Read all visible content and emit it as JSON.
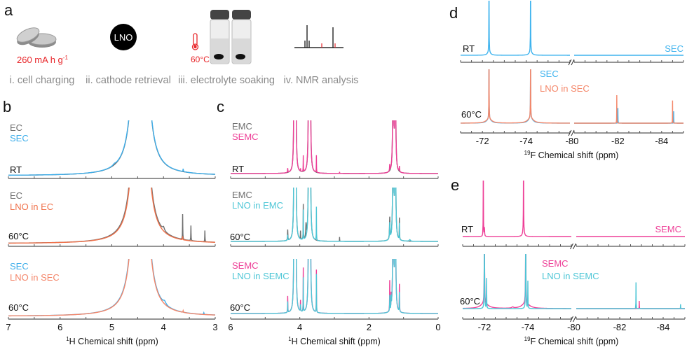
{
  "panel_letters": {
    "a": "a",
    "b": "b",
    "c": "c",
    "d": "d",
    "e": "e"
  },
  "workflow": {
    "capacity": "260 mA h g",
    "capacity_sup": "-1",
    "lno_badge": "LNO",
    "temperature": "60°C",
    "steps": [
      "i. cell charging",
      "ii. cathode retrieval",
      "iii. electrolyte soaking",
      "iv. NMR analysis"
    ],
    "colors": {
      "accent": "#e8262a",
      "text": "#8a8a8a"
    }
  },
  "chart_data": [
    {
      "id": "b",
      "type": "line",
      "xlabel_sup": "1",
      "xlabel": "H Chemical shift (ppm)",
      "xlim": [
        7,
        3
      ],
      "xticks": [
        "7",
        "6",
        "5",
        "4",
        "3"
      ],
      "xtick_values": [
        7,
        6,
        5,
        4,
        3
      ],
      "subplots": [
        {
          "condition": "RT",
          "series": [
            {
              "name": "EC",
              "color": "#6e6e6e",
              "peaks": [
                [
                  4.45,
                  12500,
                  0.02
                ],
                [
                  4.25,
                  8,
                  0.01
                ]
              ]
            },
            {
              "name": "SEC",
              "color": "#3eaeea",
              "peaks": [
                [
                  4.45,
                  12800,
                  0.02
                ],
                [
                  4.95,
                  2,
                  0.03
                ],
                [
                  3.62,
                  5,
                  0.004
                ]
              ]
            }
          ]
        },
        {
          "condition": "60°C",
          "series": [
            {
              "name": "EC",
              "color": "#6e6e6e",
              "peaks": [
                [
                  4.45,
                  12500,
                  0.02
                ],
                [
                  4.0,
                  6,
                  0.02
                ],
                [
                  3.63,
                  45,
                  0.003
                ],
                [
                  3.47,
                  27,
                  0.003
                ],
                [
                  3.2,
                  20,
                  0.003
                ]
              ]
            },
            {
              "name": "LNO in EC",
              "color": "#f0714a",
              "peaks": [
                [
                  4.45,
                  11500,
                  0.02
                ],
                [
                  3.63,
                  6,
                  0.003
                ]
              ]
            }
          ]
        },
        {
          "condition": "60°C",
          "series": [
            {
              "name": "SEC",
              "color": "#3eaeea",
              "peaks": [
                [
                  4.45,
                  12500,
                  0.02
                ],
                [
                  3.98,
                  5,
                  0.03
                ],
                [
                  3.22,
                  3,
                  0.005
                ]
              ]
            },
            {
              "name": "LNO in SEC",
              "color": "#f4866a",
              "peaks": [
                [
                  4.45,
                  12000,
                  0.02
                ],
                [
                  3.62,
                  3,
                  0.004
                ]
              ]
            }
          ]
        }
      ]
    },
    {
      "id": "c",
      "type": "line",
      "xlabel_sup": "1",
      "xlabel": "H Chemical shift (ppm)",
      "xlim": [
        6,
        0
      ],
      "xticks": [
        "6",
        "4",
        "2",
        "0"
      ],
      "xtick_values": [
        6,
        4,
        2,
        0
      ],
      "subplots": [
        {
          "condition": "RT",
          "series": [
            {
              "name": "EMC",
              "color": "#6e6e6e",
              "peaks": [
                [
                  4.16,
                  300,
                  0.012
                ],
                [
                  4.12,
                  300,
                  0.012
                ],
                [
                  3.74,
                  300,
                  0.012
                ],
                [
                  3.7,
                  300,
                  0.012
                ],
                [
                  1.3,
                  300,
                  0.012
                ],
                [
                  1.24,
                  300,
                  0.012
                ]
              ]
            },
            {
              "name": "SEMC",
              "color": "#ee3f97",
              "peaks": [
                [
                  4.16,
                  300,
                  0.012
                ],
                [
                  4.12,
                  300,
                  0.012
                ],
                [
                  3.74,
                  300,
                  0.012
                ],
                [
                  3.7,
                  300,
                  0.012
                ],
                [
                  1.3,
                  300,
                  0.012
                ],
                [
                  1.24,
                  300,
                  0.012
                ],
                [
                  4.35,
                  8,
                  0.006
                ],
                [
                  3.9,
                  30,
                  0.003
                ],
                [
                  3.52,
                  32,
                  0.003
                ],
                [
                  3.98,
                  5,
                  0.004
                ],
                [
                  2.85,
                  3,
                  0.003
                ],
                [
                  1.4,
                  12,
                  0.006
                ],
                [
                  1.12,
                  10,
                  0.006
                ]
              ]
            }
          ]
        },
        {
          "condition": "60°C",
          "series": [
            {
              "name": "EMC",
              "color": "#6e6e6e",
              "peaks": [
                [
                  4.16,
                  300,
                  0.012
                ],
                [
                  4.12,
                  300,
                  0.012
                ],
                [
                  3.74,
                  300,
                  0.012
                ],
                [
                  3.7,
                  300,
                  0.012
                ],
                [
                  1.3,
                  300,
                  0.012
                ],
                [
                  1.24,
                  300,
                  0.012
                ],
                [
                  4.35,
                  20,
                  0.006
                ],
                [
                  3.9,
                  65,
                  0.003
                ],
                [
                  3.82,
                  25,
                  0.01
                ],
                [
                  3.98,
                  15,
                  0.004
                ],
                [
                  2.85,
                  8,
                  0.003
                ],
                [
                  1.4,
                  40,
                  0.008
                ],
                [
                  1.12,
                  40,
                  0.004
                ]
              ]
            },
            {
              "name": "LNO in EMC",
              "color": "#4dc6d6",
              "peaks": [
                [
                  4.16,
                  300,
                  0.012
                ],
                [
                  4.12,
                  300,
                  0.012
                ],
                [
                  3.74,
                  300,
                  0.012
                ],
                [
                  3.7,
                  300,
                  0.012
                ],
                [
                  1.3,
                  300,
                  0.012
                ],
                [
                  1.24,
                  300,
                  0.012
                ],
                [
                  4.35,
                  10,
                  0.006
                ],
                [
                  3.9,
                  55,
                  0.003
                ],
                [
                  3.52,
                  62,
                  0.003
                ],
                [
                  1.4,
                  30,
                  0.008
                ],
                [
                  1.12,
                  30,
                  0.004
                ],
                [
                  0.82,
                  3,
                  0.02
                ]
              ]
            }
          ]
        },
        {
          "condition": "60°C",
          "series": [
            {
              "name": "SEMC",
              "color": "#ee3f97",
              "peaks": [
                [
                  4.16,
                  300,
                  0.012
                ],
                [
                  4.12,
                  300,
                  0.012
                ],
                [
                  3.74,
                  300,
                  0.012
                ],
                [
                  3.7,
                  300,
                  0.012
                ],
                [
                  1.3,
                  300,
                  0.012
                ],
                [
                  1.24,
                  300,
                  0.012
                ],
                [
                  4.35,
                  30,
                  0.004
                ],
                [
                  3.9,
                  80,
                  0.003
                ],
                [
                  3.52,
                  78,
                  0.003
                ],
                [
                  3.98,
                  20,
                  0.004
                ],
                [
                  1.4,
                  55,
                  0.004
                ],
                [
                  1.12,
                  50,
                  0.004
                ],
                [
                  1.36,
                  25,
                  0.004
                ]
              ]
            },
            {
              "name": "LNO in SEMC",
              "color": "#4dc6d6",
              "peaks": [
                [
                  4.16,
                  300,
                  0.012
                ],
                [
                  4.12,
                  300,
                  0.012
                ],
                [
                  3.74,
                  300,
                  0.012
                ],
                [
                  3.7,
                  300,
                  0.012
                ],
                [
                  1.3,
                  300,
                  0.012
                ],
                [
                  1.24,
                  300,
                  0.012
                ],
                [
                  4.35,
                  20,
                  0.004
                ],
                [
                  3.9,
                  62,
                  0.003
                ],
                [
                  3.52,
                  70,
                  0.003
                ],
                [
                  3.98,
                  12,
                  0.004
                ],
                [
                  1.4,
                  28,
                  0.004
                ],
                [
                  1.12,
                  35,
                  0.004
                ],
                [
                  1.36,
                  20,
                  0.004
                ]
              ]
            }
          ]
        }
      ]
    },
    {
      "id": "d",
      "type": "line",
      "xlabel_sup": "19",
      "xlabel": "F Chemical shift (ppm)",
      "xlim_segments": [
        [
          -71,
          -76
        ],
        [
          -80,
          -85
        ]
      ],
      "axis_break": true,
      "xticks": [
        "-72",
        "-74",
        "-80",
        "-82",
        "-84"
      ],
      "xtick_values": [
        -72,
        -74,
        -80,
        -82,
        -84
      ],
      "subplots": [
        {
          "condition": "RT",
          "label_right": "SEC",
          "series": [
            {
              "name": "SEC",
              "color": "#3eb3ee",
              "peaks": [
                [
                  -72.3,
                  140,
                  0.006
                ],
                [
                  -74.2,
                  140,
                  0.006
                ],
                [
                  -72.3,
                  6,
                  0.08
                ],
                [
                  -74.2,
                  6,
                  0.08
                ]
              ]
            }
          ]
        },
        {
          "condition": "60°C",
          "series": [
            {
              "name": "SEC",
              "color": "#3eb3ee",
              "peaks": [
                [
                  -72.3,
                  120,
                  0.006
                ],
                [
                  -74.2,
                  120,
                  0.006
                ],
                [
                  -72.3,
                  8,
                  0.12
                ],
                [
                  -74.2,
                  10,
                  0.12
                ],
                [
                  -82.0,
                  28,
                  0.004
                ],
                [
                  -84.55,
                  22,
                  0.004
                ]
              ]
            },
            {
              "name": "LNO in SEC",
              "color": "#f4876a",
              "peaks": [
                [
                  -72.3,
                  120,
                  0.006
                ],
                [
                  -74.2,
                  120,
                  0.006
                ],
                [
                  -72.3,
                  8,
                  0.15
                ],
                [
                  -74.2,
                  10,
                  0.15
                ],
                [
                  -81.95,
                  52,
                  0.004
                ],
                [
                  -84.5,
                  42,
                  0.004
                ]
              ]
            }
          ]
        }
      ]
    },
    {
      "id": "e",
      "type": "line",
      "xlabel_sup": "19",
      "xlabel": "F Chemical shift (ppm)",
      "xlim_segments": [
        [
          -71,
          -76
        ],
        [
          -80,
          -85
        ]
      ],
      "axis_break": true,
      "xticks": [
        "-72",
        "-74",
        "-80",
        "-82",
        "-84"
      ],
      "xtick_values": [
        -72,
        -74,
        -80,
        -82,
        -84
      ],
      "subplots": [
        {
          "condition": "RT",
          "label_right": "SEMC",
          "series": [
            {
              "name": "SEMC",
              "color": "#ee3f97",
              "peaks": [
                [
                  -71.95,
                  140,
                  0.006
                ],
                [
                  -73.8,
                  140,
                  0.006
                ],
                [
                  -72.0,
                  15,
                  0.01
                ],
                [
                  -73.8,
                  12,
                  0.04
                ]
              ]
            }
          ]
        },
        {
          "condition": "60°C",
          "series": [
            {
              "name": "SEMC",
              "color": "#ee3f97",
              "peaks": [
                [
                  -72.0,
                  130,
                  0.01
                ],
                [
                  -73.9,
                  130,
                  0.01
                ],
                [
                  -72.0,
                  10,
                  0.2
                ],
                [
                  -73.9,
                  10,
                  0.2
                ],
                [
                  -73.3,
                  2,
                  0.05
                ],
                [
                  -82.9,
                  14,
                  0.004
                ]
              ]
            },
            {
              "name": "LNO in SEMC",
              "color": "#4dc6d6",
              "peaks": [
                [
                  -72.0,
                  130,
                  0.01
                ],
                [
                  -73.9,
                  130,
                  0.01
                ],
                [
                  -72.1,
                  55,
                  0.006
                ],
                [
                  -74.0,
                  50,
                  0.006
                ],
                [
                  -82.75,
                  48,
                  0.004
                ],
                [
                  -84.8,
                  8,
                  0.004
                ]
              ]
            }
          ]
        }
      ]
    }
  ]
}
